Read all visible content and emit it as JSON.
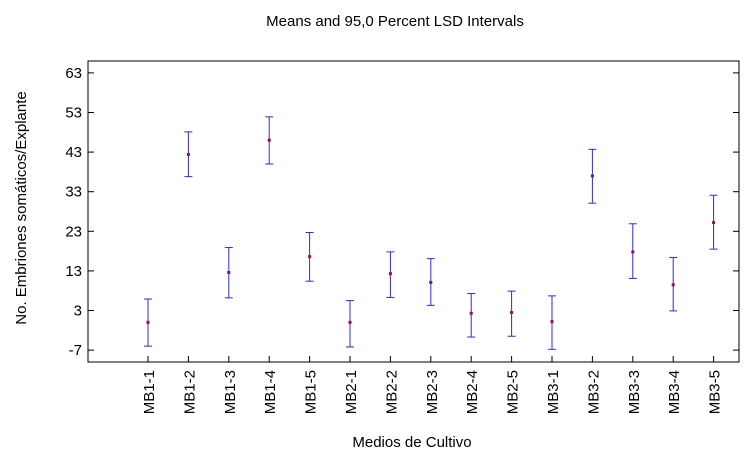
{
  "chart_data": {
    "type": "scatter",
    "title": "Means and 95,0 Percent LSD Intervals",
    "xlabel": "Medios de Cultivo",
    "ylabel": "No. Embriones somáticos/Explante",
    "ylim": [
      -10,
      66
    ],
    "yticks": [
      -7,
      3,
      13,
      23,
      33,
      43,
      53,
      63
    ],
    "ytick_labels": [
      "-7",
      "3",
      "13",
      "23",
      "33",
      "43",
      "53",
      "63"
    ],
    "categories": [
      "MB1-1",
      "MB1-2",
      "MB1-3",
      "MB1-4",
      "MB1-5",
      "MB2-1",
      "MB2-2",
      "MB2-3",
      "MB2-4",
      "MB2-5",
      "MB3-1",
      "MB3-2",
      "MB3-3",
      "MB3-4",
      "MB3-5"
    ],
    "series": [
      {
        "means": [
          0.0,
          42.4,
          12.6,
          46.0,
          16.6,
          0.0,
          12.3,
          10.1,
          2.3,
          2.5,
          0.2,
          37.0,
          17.8,
          9.5,
          25.2
        ],
        "lower": [
          -6.0,
          36.8,
          6.2,
          40.0,
          10.4,
          -6.2,
          6.3,
          4.3,
          -3.7,
          -3.5,
          -6.8,
          30.1,
          11.1,
          2.9,
          18.5
        ],
        "upper": [
          5.9,
          48.1,
          18.9,
          51.9,
          22.7,
          5.5,
          17.8,
          16.1,
          7.3,
          7.9,
          6.7,
          43.7,
          24.9,
          16.4,
          32.1
        ],
        "marker_color": "#9b0e3f",
        "bar_color": "#2e2bd6"
      }
    ],
    "grid": false,
    "legend": "none"
  }
}
